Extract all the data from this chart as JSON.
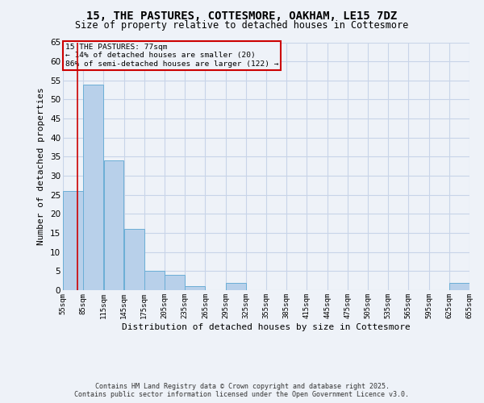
{
  "title_line1": "15, THE PASTURES, COTTESMORE, OAKHAM, LE15 7DZ",
  "title_line2": "Size of property relative to detached houses in Cottesmore",
  "xlabel": "Distribution of detached houses by size in Cottesmore",
  "ylabel": "Number of detached properties",
  "bar_values": [
    26,
    54,
    34,
    16,
    5,
    4,
    1,
    0,
    2,
    0,
    0,
    0,
    0,
    0,
    0,
    0,
    0,
    0,
    0,
    2
  ],
  "bin_edges": [
    55,
    85,
    115,
    145,
    175,
    205,
    235,
    265,
    295,
    325,
    355,
    385,
    415,
    445,
    475,
    505,
    535,
    565,
    595,
    625,
    655
  ],
  "x_tick_labels": [
    "55sqm",
    "85sqm",
    "115sqm",
    "145sqm",
    "175sqm",
    "205sqm",
    "235sqm",
    "265sqm",
    "295sqm",
    "325sqm",
    "355sqm",
    "385sqm",
    "415sqm",
    "445sqm",
    "475sqm",
    "505sqm",
    "535sqm",
    "565sqm",
    "595sqm",
    "625sqm",
    "655sqm"
  ],
  "property_size": 77,
  "property_label": "15 THE PASTURES: 77sqm",
  "annotation_line2": "← 14% of detached houses are smaller (20)",
  "annotation_line3": "86% of semi-detached houses are larger (122) →",
  "bar_color": "#b8d0ea",
  "bar_edge_color": "#6baed6",
  "red_line_color": "#cc0000",
  "annotation_box_color": "#cc0000",
  "background_color": "#eef2f8",
  "grid_color": "#c8d4e8",
  "ylim": [
    0,
    65
  ],
  "yticks": [
    0,
    5,
    10,
    15,
    20,
    25,
    30,
    35,
    40,
    45,
    50,
    55,
    60,
    65
  ],
  "footer_line1": "Contains HM Land Registry data © Crown copyright and database right 2025.",
  "footer_line2": "Contains public sector information licensed under the Open Government Licence v3.0."
}
